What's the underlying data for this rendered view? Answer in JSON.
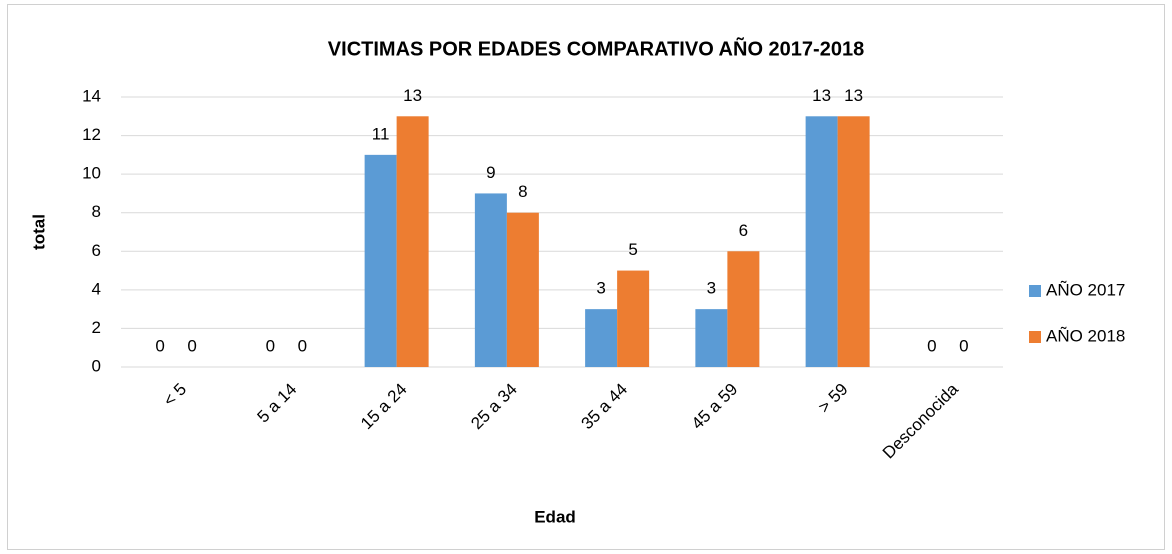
{
  "chart_data": {
    "type": "bar",
    "title": "VICTIMAS POR EDADES COMPARATIVO AÑO 2017-2018",
    "x_label": "Edad",
    "y_label": "total",
    "categories": [
      "< 5",
      "5 a 14",
      "15 a 24",
      "25 a 34",
      "35 a 44",
      "45 a 59",
      "> 59",
      "Desconocida"
    ],
    "series": [
      {
        "name": "AÑO 2017",
        "color": "#5b9bd5",
        "values": [
          0,
          0,
          11,
          9,
          3,
          3,
          13,
          0
        ]
      },
      {
        "name": "AÑO 2018",
        "color": "#ed7d31",
        "values": [
          0,
          0,
          13,
          8,
          5,
          6,
          13,
          0
        ]
      }
    ],
    "ylim": [
      0,
      14
    ],
    "yticks": [
      0,
      2,
      4,
      6,
      8,
      10,
      12,
      14
    ],
    "grid": true,
    "legend": "right"
  }
}
